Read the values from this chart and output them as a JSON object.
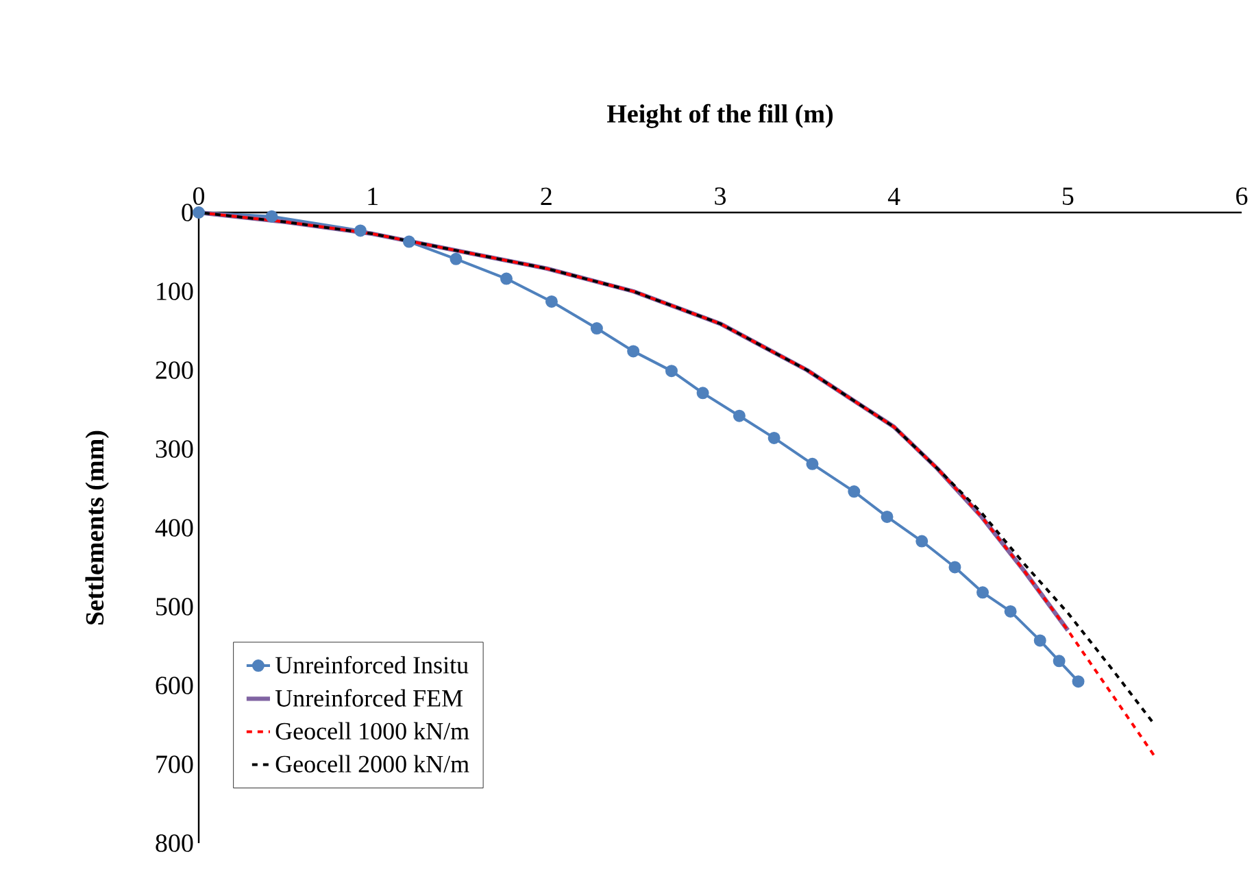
{
  "chart_data": {
    "type": "line",
    "xlabel": "Height of the fill (m)",
    "ylabel": "Settlements (mm)",
    "xlim": [
      0,
      6
    ],
    "xticks": [
      0,
      1,
      2,
      3,
      4,
      5,
      6
    ],
    "ylim": [
      800,
      0
    ],
    "yticks": [
      0,
      100,
      200,
      300,
      400,
      500,
      600,
      700,
      800
    ],
    "grid": false,
    "legend": "bottom left",
    "series": [
      {
        "name": "Unreinforced Insitu",
        "color": "#4f81bd",
        "marker": "circle",
        "line_style": "solid",
        "x": [
          0,
          0.42,
          0.93,
          1.21,
          1.48,
          1.77,
          2.03,
          2.29,
          2.5,
          2.72,
          2.9,
          3.11,
          3.31,
          3.53,
          3.77,
          3.96,
          4.16,
          4.35,
          4.51,
          4.67,
          4.84,
          4.95,
          5.06
        ],
        "values": [
          0,
          5,
          23,
          37,
          59,
          84,
          113,
          147,
          176,
          201,
          229,
          258,
          286,
          319,
          354,
          386,
          417,
          450,
          482,
          506,
          543,
          569,
          595
        ]
      },
      {
        "name": "Unreinforced FEM",
        "color": "#8064a2",
        "marker": "none",
        "line_style": "solid",
        "x": [
          0,
          0.5,
          1,
          1.5,
          2,
          2.5,
          3,
          3.5,
          4,
          4.25,
          4.5,
          4.75,
          5
        ],
        "values": [
          0,
          12,
          27,
          49,
          71,
          100,
          141,
          200,
          272,
          325,
          385,
          455,
          530
        ]
      },
      {
        "name": "Geocell 1000 kN/m",
        "color": "#ff0000",
        "marker": "none",
        "line_style": "dashed",
        "x": [
          0,
          0.5,
          1,
          1.5,
          2,
          2.5,
          3,
          3.5,
          4,
          4.25,
          4.5,
          4.75,
          5,
          5.25,
          5.5
        ],
        "values": [
          0,
          12,
          27,
          49,
          71,
          100,
          141,
          200,
          272,
          325,
          385,
          455,
          530,
          610,
          690
        ]
      },
      {
        "name": "Geocell 2000 kN/m",
        "color": "#000000",
        "marker": "none",
        "line_style": "dashed",
        "x": [
          0,
          0.5,
          1,
          1.5,
          2,
          2.5,
          3,
          3.5,
          4,
          4.25,
          4.5,
          4.75,
          5,
          5.25,
          5.5
        ],
        "values": [
          0,
          12,
          27,
          49,
          71,
          100,
          141,
          200,
          272,
          325,
          380,
          446,
          508,
          578,
          650
        ]
      }
    ]
  }
}
